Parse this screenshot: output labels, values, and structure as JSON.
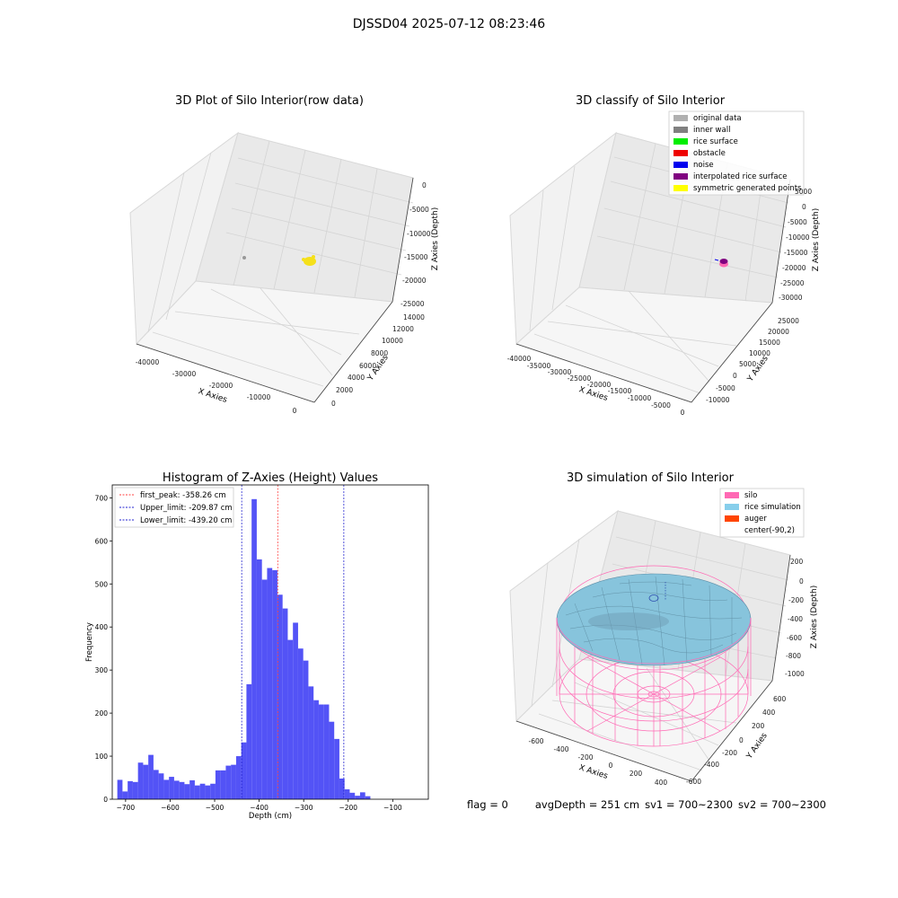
{
  "figure": {
    "suptitle": "DJSSD04 2025-07-12 08:23:46",
    "status": {
      "flag": "flag = 0",
      "avg_depth": "avgDepth = 251 cm",
      "sv1": "sv1 = 700~2300",
      "sv2": "sv2 = 700~2300"
    },
    "colors": {
      "bars": "#4a4af5",
      "peak_line": "#ff4040",
      "limit_line": "#2020d0",
      "raw_points": "#f5e01a",
      "silo": "#ff69b4",
      "rice": "#87c4dc",
      "auger": "#ff4500"
    }
  },
  "chart_data": [
    {
      "type": "scatter",
      "projection": "3d",
      "title": "3D Plot of Silo Interior(row data)",
      "xlabel": "X Axies",
      "ylabel": "Y Axies",
      "zlabel": "Z Axies (Depth)",
      "x_ticks": [
        "-40000",
        "-30000",
        "-20000",
        "-10000",
        "0"
      ],
      "y_ticks": [
        "0",
        "2000",
        "4000",
        "6000",
        "8000",
        "10000",
        "12000",
        "14000"
      ],
      "z_ticks": [
        "0",
        "-5000",
        "-10000",
        "-15000",
        "-20000",
        "-25000"
      ],
      "grid": true,
      "series": [
        {
          "color": "#f5e01a",
          "values": [
            [
              -19000,
              7500,
              -13000
            ],
            [
              -18800,
              7600,
              -13100
            ],
            [
              -18600,
              7400,
              -13050
            ],
            [
              -19200,
              7300,
              -12900
            ],
            [
              -18900,
              7700,
              -13200
            ]
          ]
        },
        {
          "color": "#999999",
          "values": [
            [
              -38000,
              6500,
              -12500
            ]
          ]
        }
      ]
    },
    {
      "type": "scatter",
      "projection": "3d",
      "title": "3D classify of Silo Interior",
      "xlabel": "X Axies",
      "ylabel": "Y Axies",
      "zlabel": "Z Axies (Depth)",
      "x_ticks": [
        "-40000",
        "-35000",
        "-30000",
        "-25000",
        "-20000",
        "-15000",
        "-10000",
        "-5000",
        "0"
      ],
      "y_ticks": [
        "-10000",
        "-5000",
        "0",
        "5000",
        "10000",
        "15000",
        "20000",
        "25000"
      ],
      "z_ticks": [
        "5000",
        "0",
        "-5000",
        "-10000",
        "-15000",
        "-20000",
        "-25000",
        "-30000"
      ],
      "grid": true,
      "legend_placement": "top-right",
      "legend": [
        {
          "label": "original data",
          "color": "#b0b0b0"
        },
        {
          "label": "inner wall",
          "color": "#808080"
        },
        {
          "label": "rice surface",
          "color": "#00ee00"
        },
        {
          "label": "obstacle",
          "color": "#ee0000"
        },
        {
          "label": "noise",
          "color": "#0000ee"
        },
        {
          "label": "interpolated rice surface",
          "color": "#800080"
        },
        {
          "label": "symmetric generated points",
          "color": "#ffff00"
        }
      ]
    },
    {
      "type": "bar",
      "title": "Histogram of Z-Axies (Height) Values",
      "xlabel": "Depth (cm)",
      "ylabel": "Frequency",
      "xlim": [
        -730,
        -20
      ],
      "ylim": [
        0,
        730
      ],
      "x_ticks": [
        -700,
        -600,
        -500,
        -400,
        -300,
        -200,
        -100
      ],
      "y_ticks": [
        0,
        100,
        200,
        300,
        400,
        500,
        600,
        700
      ],
      "bin_start": -718.6,
      "bin_width": 11.6,
      "values": [
        45,
        18,
        42,
        40,
        85,
        80,
        103,
        68,
        60,
        45,
        52,
        43,
        40,
        35,
        44,
        32,
        36,
        32,
        36,
        67,
        67,
        78,
        80,
        100,
        132,
        267,
        697,
        557,
        510,
        537,
        532,
        475,
        443,
        370,
        410,
        350,
        322,
        262,
        230,
        220,
        220,
        180,
        140,
        48,
        23,
        15,
        8,
        16,
        7
      ],
      "vlines": [
        {
          "label": "first_peak: -358.26 cm",
          "x": -358.26,
          "kind": "peak"
        },
        {
          "label": "Upper_limit: -209.87 cm",
          "x": -209.87,
          "kind": "limit"
        },
        {
          "label": "Lower_limit: -439.20 cm",
          "x": -439.2,
          "kind": "limit"
        }
      ],
      "legend_placement": "top-left"
    },
    {
      "type": "surface",
      "projection": "3d",
      "title": "3D simulation of Silo Interior",
      "xlabel": "X Axies",
      "ylabel": "Y Axies",
      "zlabel": "Z Axies (Depth)",
      "x_ticks": [
        "-600",
        "-400",
        "-200",
        "0",
        "200",
        "400"
      ],
      "y_ticks": [
        "-600",
        "-400",
        "-200",
        "0",
        "200",
        "400",
        "600"
      ],
      "z_ticks": [
        "200",
        "0",
        "-200",
        "-400",
        "-600",
        "-800",
        "-1000"
      ],
      "grid": true,
      "legend_placement": "top-right",
      "legend": [
        {
          "label": "silo",
          "color": "#ff69b4"
        },
        {
          "label": "rice simulation",
          "color": "#87ceeb"
        },
        {
          "label": "auger",
          "color": "#ff4500"
        },
        {
          "label": "center(-90,2)",
          "color": ""
        }
      ]
    }
  ]
}
